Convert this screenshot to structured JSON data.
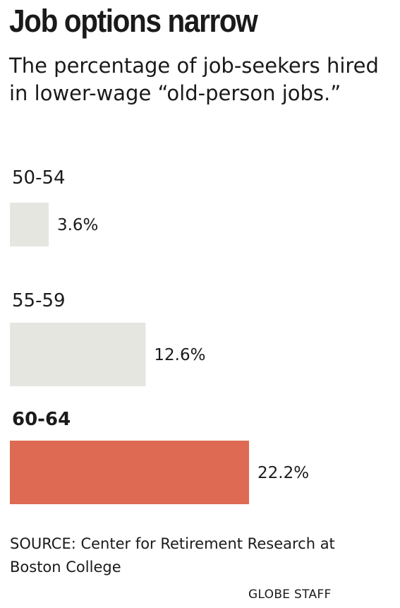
{
  "chart_data": {
    "type": "bar",
    "orientation": "horizontal",
    "title": "Job options narrow",
    "subtitle": "The percentage of job-seekers hired in lower-wage “old-person jobs.”",
    "categories": [
      "50-54",
      "55-59",
      "60-64"
    ],
    "values": [
      3.6,
      12.6,
      22.2
    ],
    "value_labels": [
      "3.6%",
      "12.6%",
      "22.2%"
    ],
    "highlight_index": 2,
    "colors": {
      "default": "#e6e6e0",
      "highlight": "#de6a53"
    },
    "xlim": [
      0,
      22.2
    ],
    "grid": false,
    "source": "SOURCE: Center for Retirement Research at Boston College",
    "credit": "GLOBE STAFF"
  }
}
